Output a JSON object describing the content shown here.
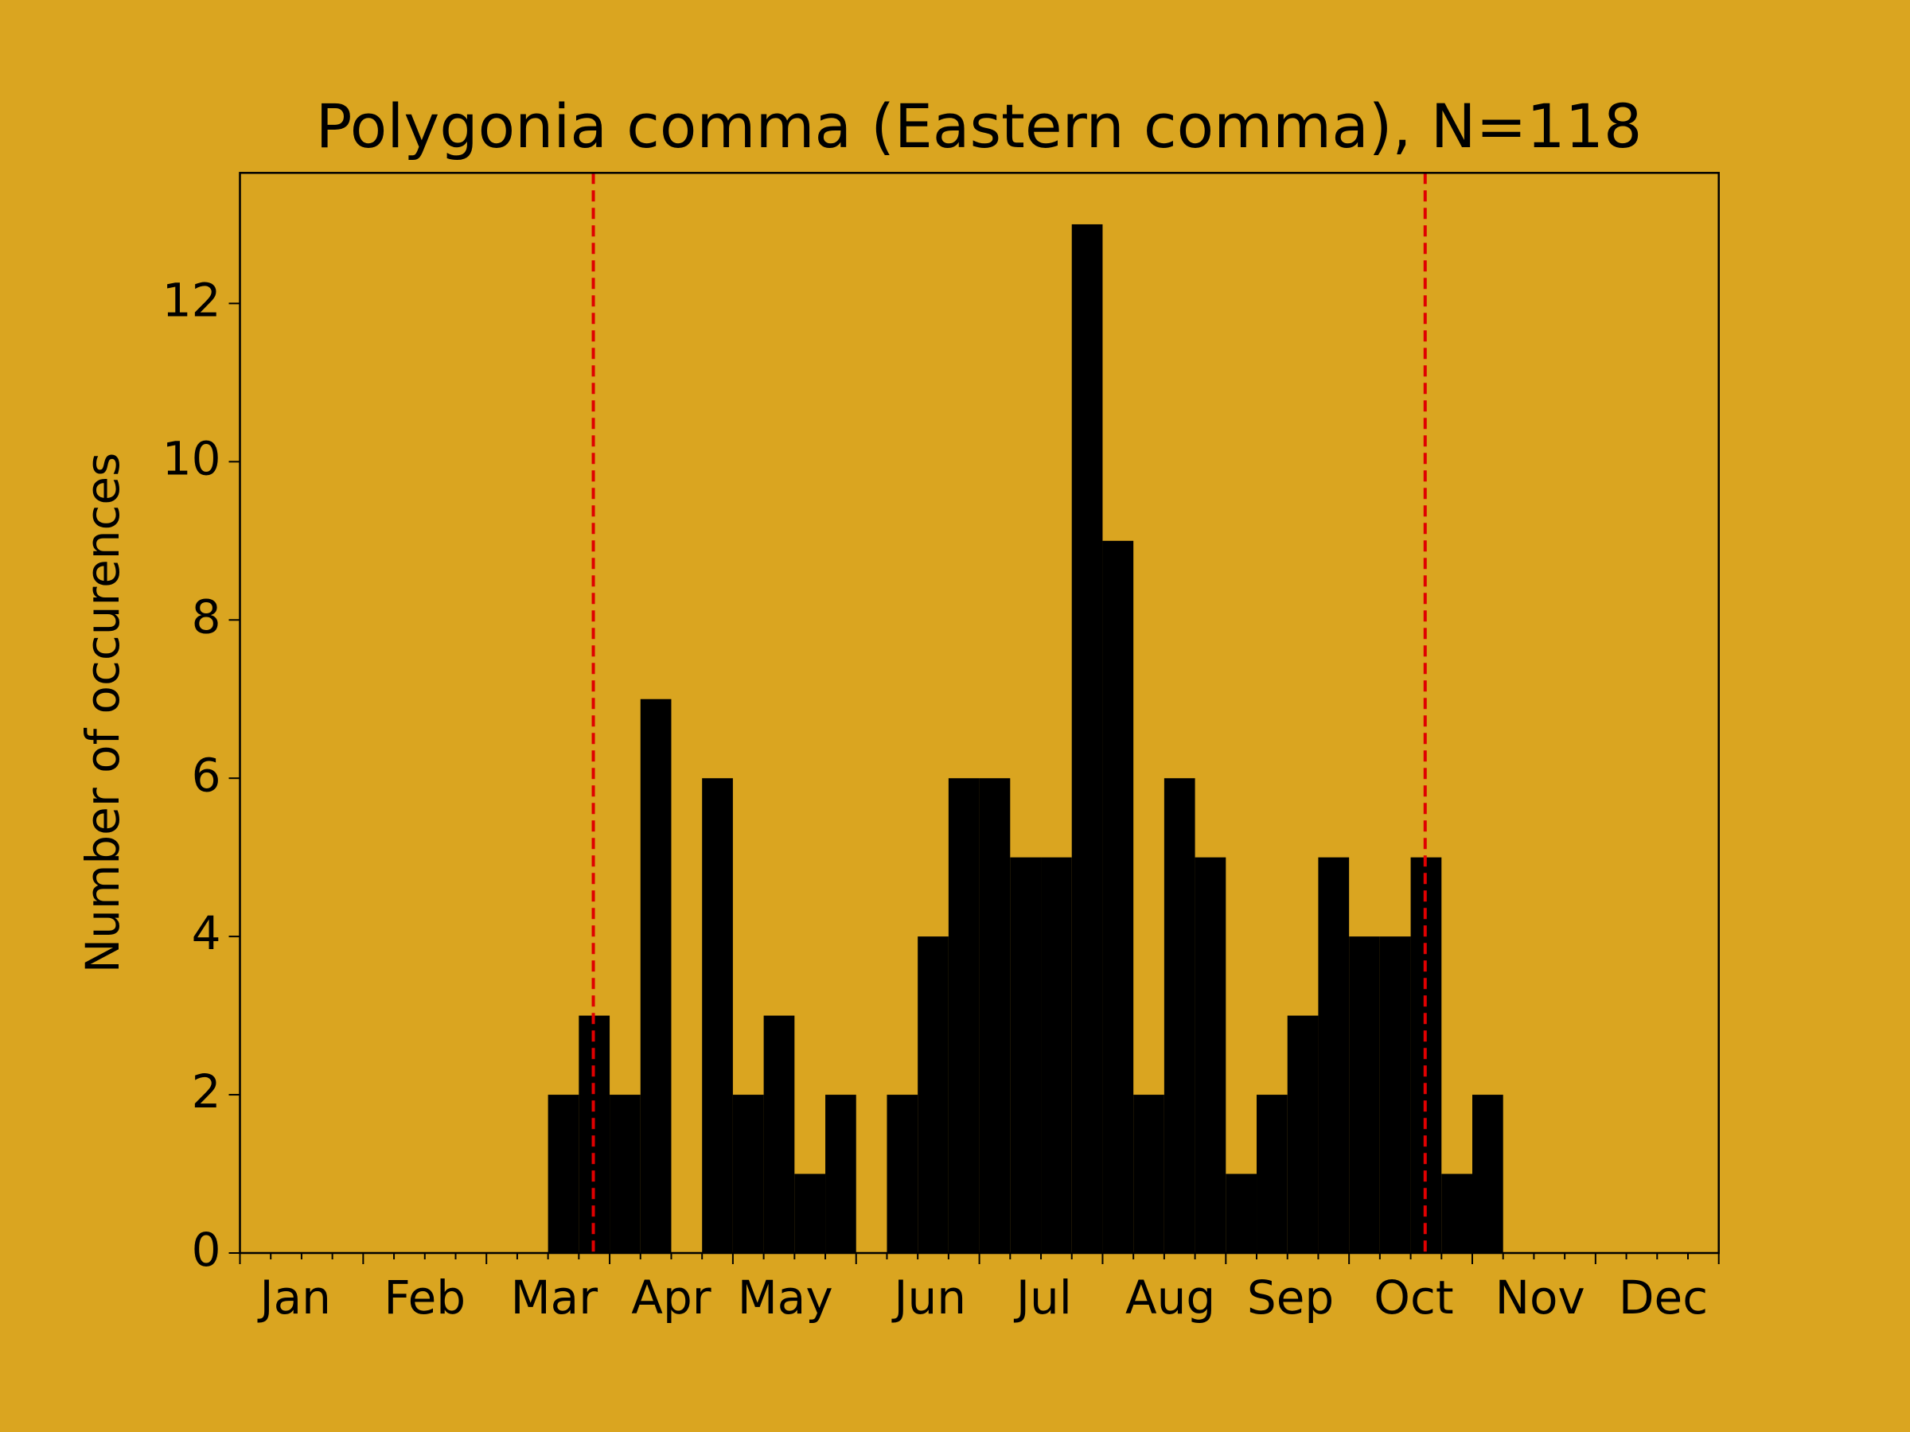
{
  "chart_data": {
    "type": "histogram",
    "title": "Polygonia comma (Eastern comma), N=118",
    "ylabel": "Number of occurences",
    "bins": [
      0,
      1,
      2,
      3,
      4,
      5,
      6,
      7,
      8,
      9,
      10,
      11,
      12,
      13,
      14,
      15,
      16,
      17,
      18,
      19,
      20,
      21,
      22,
      23,
      24,
      25,
      26,
      27,
      28,
      29,
      30,
      31,
      32,
      33,
      34,
      35,
      36,
      37,
      38,
      39,
      40,
      41,
      42,
      43,
      44,
      45,
      46,
      47,
      48
    ],
    "values": [
      0,
      0,
      0,
      0,
      0,
      0,
      0,
      0,
      0,
      0,
      2,
      3,
      2,
      7,
      0,
      6,
      2,
      3,
      1,
      2,
      0,
      2,
      4,
      6,
      6,
      5,
      5,
      13,
      9,
      2,
      6,
      5,
      1,
      2,
      3,
      5,
      4,
      4,
      5,
      1,
      2,
      0,
      0,
      0,
      0,
      0,
      0,
      0
    ],
    "color": "#000000",
    "xlim": [
      0,
      48
    ],
    "xticks": [
      {
        "value": 1.8,
        "label": "Jan"
      },
      {
        "value": 6.0,
        "label": "Feb"
      },
      {
        "value": 10.2,
        "label": "Mar"
      },
      {
        "value": 14.0,
        "label": "Apr"
      },
      {
        "value": 17.7,
        "label": "May"
      },
      {
        "value": 22.4,
        "label": "Jun"
      },
      {
        "value": 26.1,
        "label": "Jul"
      },
      {
        "value": 30.2,
        "label": "Aug"
      },
      {
        "value": 34.1,
        "label": "Sep"
      },
      {
        "value": 38.1,
        "label": "Oct"
      },
      {
        "value": 42.2,
        "label": "Nov"
      },
      {
        "value": 46.2,
        "label": "Dec"
      }
    ],
    "ylim": [
      0,
      13.65
    ],
    "yticks": [
      0,
      2,
      4,
      6,
      8,
      10,
      12
    ],
    "vlines": [
      11.47,
      38.47
    ],
    "vline_color": "#e00000"
  }
}
